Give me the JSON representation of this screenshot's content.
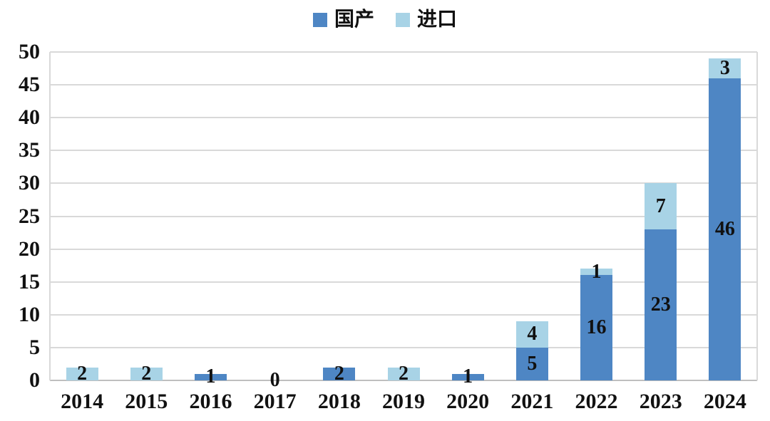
{
  "chart_data": {
    "type": "bar",
    "stacked": true,
    "title": "",
    "xlabel": "",
    "ylabel": "",
    "categories": [
      "2014",
      "2015",
      "2016",
      "2017",
      "2018",
      "2019",
      "2020",
      "2021",
      "2022",
      "2023",
      "2024"
    ],
    "series": [
      {
        "name": "国产",
        "color": "#4E86C4",
        "values": [
          0,
          0,
          1,
          0,
          2,
          0,
          1,
          5,
          16,
          23,
          46
        ]
      },
      {
        "name": "进口",
        "color": "#A8D3E6",
        "values": [
          2,
          2,
          0,
          0,
          0,
          2,
          0,
          4,
          1,
          7,
          3
        ]
      }
    ],
    "ylim": [
      0,
      50
    ],
    "ytick_step": 5,
    "yticks": [
      "0",
      "5",
      "10",
      "15",
      "20",
      "25",
      "30",
      "35",
      "40",
      "45",
      "50"
    ],
    "grid": true,
    "legend_position": "top",
    "data_labels": true,
    "zero_label": "0"
  },
  "colors": {
    "gridline": "#d9d9d9",
    "axis_line": "#bfbfbf",
    "text": "#111111",
    "background": "#ffffff"
  }
}
